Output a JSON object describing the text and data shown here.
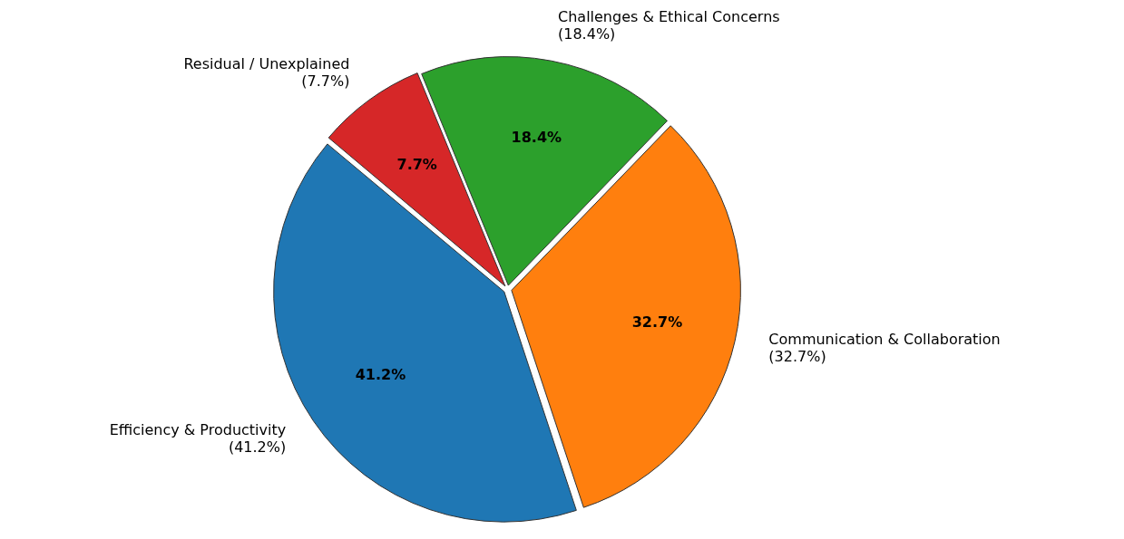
{
  "chart_data": {
    "type": "pie",
    "categories": [
      "Residual / Unexplained",
      "Challenges & Ethical Concerns",
      "Communication & Collaboration",
      "Efficiency & Productivity"
    ],
    "values": [
      7.7,
      18.4,
      32.7,
      41.2
    ],
    "colors": [
      "#d62728",
      "#2ca02c",
      "#ff7f0e",
      "#1f77b4"
    ],
    "value_labels": [
      "7.7%",
      "18.4%",
      "32.7%",
      "41.2%"
    ],
    "annotations": [
      "(7.7%)",
      "(18.4%)",
      "(32.7%)",
      "(41.2%)"
    ],
    "legend": false
  }
}
